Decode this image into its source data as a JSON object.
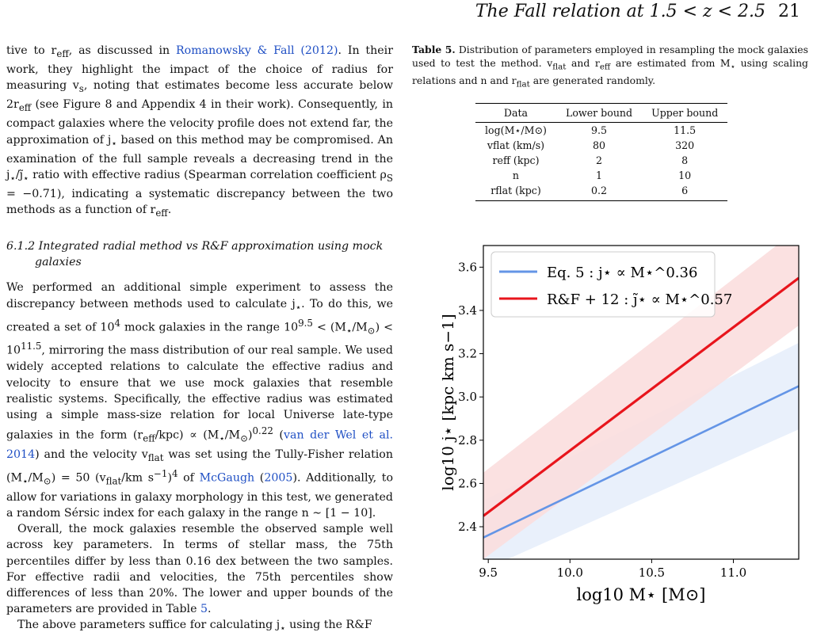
{
  "running_head": {
    "title": "The Fall relation at 1.5 < z < 2.5",
    "page": "21"
  },
  "left_column": {
    "para1_pre": "tive to r",
    "para1_sub": "eff",
    "para1_mid": ", as discussed in ",
    "para1_cite": "Romanowsky & Fall (2012)",
    "para1_rest": ". In their work, they highlight the impact of the choice of radius for measuring v",
    "para1_sub2": "s",
    "para1_rest2": ", noting that estimates become less accurate below 2r",
    "para1_rest3": " (see Figure 8 and Appendix 4 in their work). Consequently, in compact galaxies where the velocity profile does not extend far, the approximation of j",
    "para1_rest4": " based on this method may be compromised. An examination of the full sample reveals a decreasing trend in the j",
    "para1_rest5": " ratio with effective radius (Spearman correlation coefficient ρ",
    "para1_rest6": " = −0.71), indicating a systematic discrepancy between the two methods as a function of r",
    "subsection_title": "6.1.2  Integrated radial method vs R&F approximation using mock galaxies",
    "para2_a": "We performed an additional simple experiment to assess the discrepancy between methods used to calculate j",
    "para2_b": ". To do this, we created a set of 10",
    "para2_c": " mock galaxies in the range 10",
    "para2_d": " < (M",
    "para2_e": "/M",
    "para2_f": ") < 10",
    "para2_g": ", mirroring the mass distribution of our real sample. We used widely accepted relations to calculate the effective radius and velocity to ensure that we use mock galaxies that resemble realistic systems. Specifically, the effective radius was estimated using a simple mass-size relation for local Universe late-type galaxies in the form (r",
    "para2_h": "/kpc) ∝ (M",
    "para2_i": "/M",
    "para2_j": ")",
    "para2_cite1": "van der Wel et al. 2014",
    "para2_k": ") and the velocity v",
    "para2_l": " was set using the Tully-Fisher relation (M",
    "para2_m": "/M",
    "para2_n": ") = 50 (v",
    "para2_o": "/km s",
    "para2_p": " of ",
    "para2_cite2": "McGaugh",
    "para2_cite2b": "2005",
    "para2_q": "). Additionally, to allow for variations in galaxy morphology in this test, we generated a random Sérsic index for each galaxy in the range n ∼ [1 − 10].",
    "para3": "Overall, the mock galaxies resemble the observed sample well across key parameters. In terms of stellar mass, the 75th percentiles differ by less than 0.16 dex between the two samples. For effective radii and velocities, the 75th percentiles show differences of less than 20%. The lower and upper bounds of the parameters are provided in Table ",
    "para3_ref": "5",
    "para4": "The above parameters suffice for calculating j",
    "para4_rest": " using the R&F"
  },
  "table5": {
    "label": "Table 5.",
    "caption_a": " Distribution of parameters employed in resampling the mock galaxies used to test the method. v",
    "caption_b": " and r",
    "caption_c": " are estimated from M",
    "caption_d": " using scaling relations and n and r",
    "caption_e": " are generated randomly.",
    "headers": [
      "Data",
      "Lower bound",
      "Upper bound"
    ],
    "rows": [
      {
        "data": "log(M⋆/M⊙)",
        "lower": "9.5",
        "upper": "11.5"
      },
      {
        "data": "vflat (km/s)",
        "lower": "80",
        "upper": "320"
      },
      {
        "data": "reff (kpc)",
        "lower": "2",
        "upper": "8"
      },
      {
        "data": "n",
        "lower": "1",
        "upper": "10"
      },
      {
        "data": "rflat (kpc)",
        "lower": "0.2",
        "upper": "6"
      }
    ]
  },
  "chart_data": {
    "type": "line",
    "xlabel": "log10 M⋆ [M⊙]",
    "ylabel": "log10 j⋆ [kpc km s−1]",
    "xlim": [
      9.47,
      11.4
    ],
    "ylim": [
      2.25,
      3.7
    ],
    "xticks": [
      "9.5",
      "10.0",
      "10.5",
      "11.0"
    ],
    "yticks": [
      "2.4",
      "2.6",
      "2.8",
      "3.0",
      "3.2",
      "3.4",
      "3.6"
    ],
    "legend_position": "top-left",
    "series": [
      {
        "name": "Eq. 5 : j⋆ ∝ M⋆^0.36",
        "color": "#6495e6",
        "band_color": "#e7eefb",
        "x": [
          9.47,
          11.4
        ],
        "y": [
          2.35,
          3.05
        ],
        "band_upper": [
          2.52,
          3.25
        ],
        "band_lower": [
          2.2,
          2.85
        ]
      },
      {
        "name": "R&F + 12 : j̃⋆ ∝ M⋆^0.57",
        "color": "#e8151c",
        "band_color": "#fbdede",
        "x": [
          9.47,
          11.4
        ],
        "y": [
          2.45,
          3.55
        ],
        "band_upper": [
          2.65,
          3.78
        ],
        "band_lower": [
          2.25,
          3.33
        ]
      }
    ]
  }
}
